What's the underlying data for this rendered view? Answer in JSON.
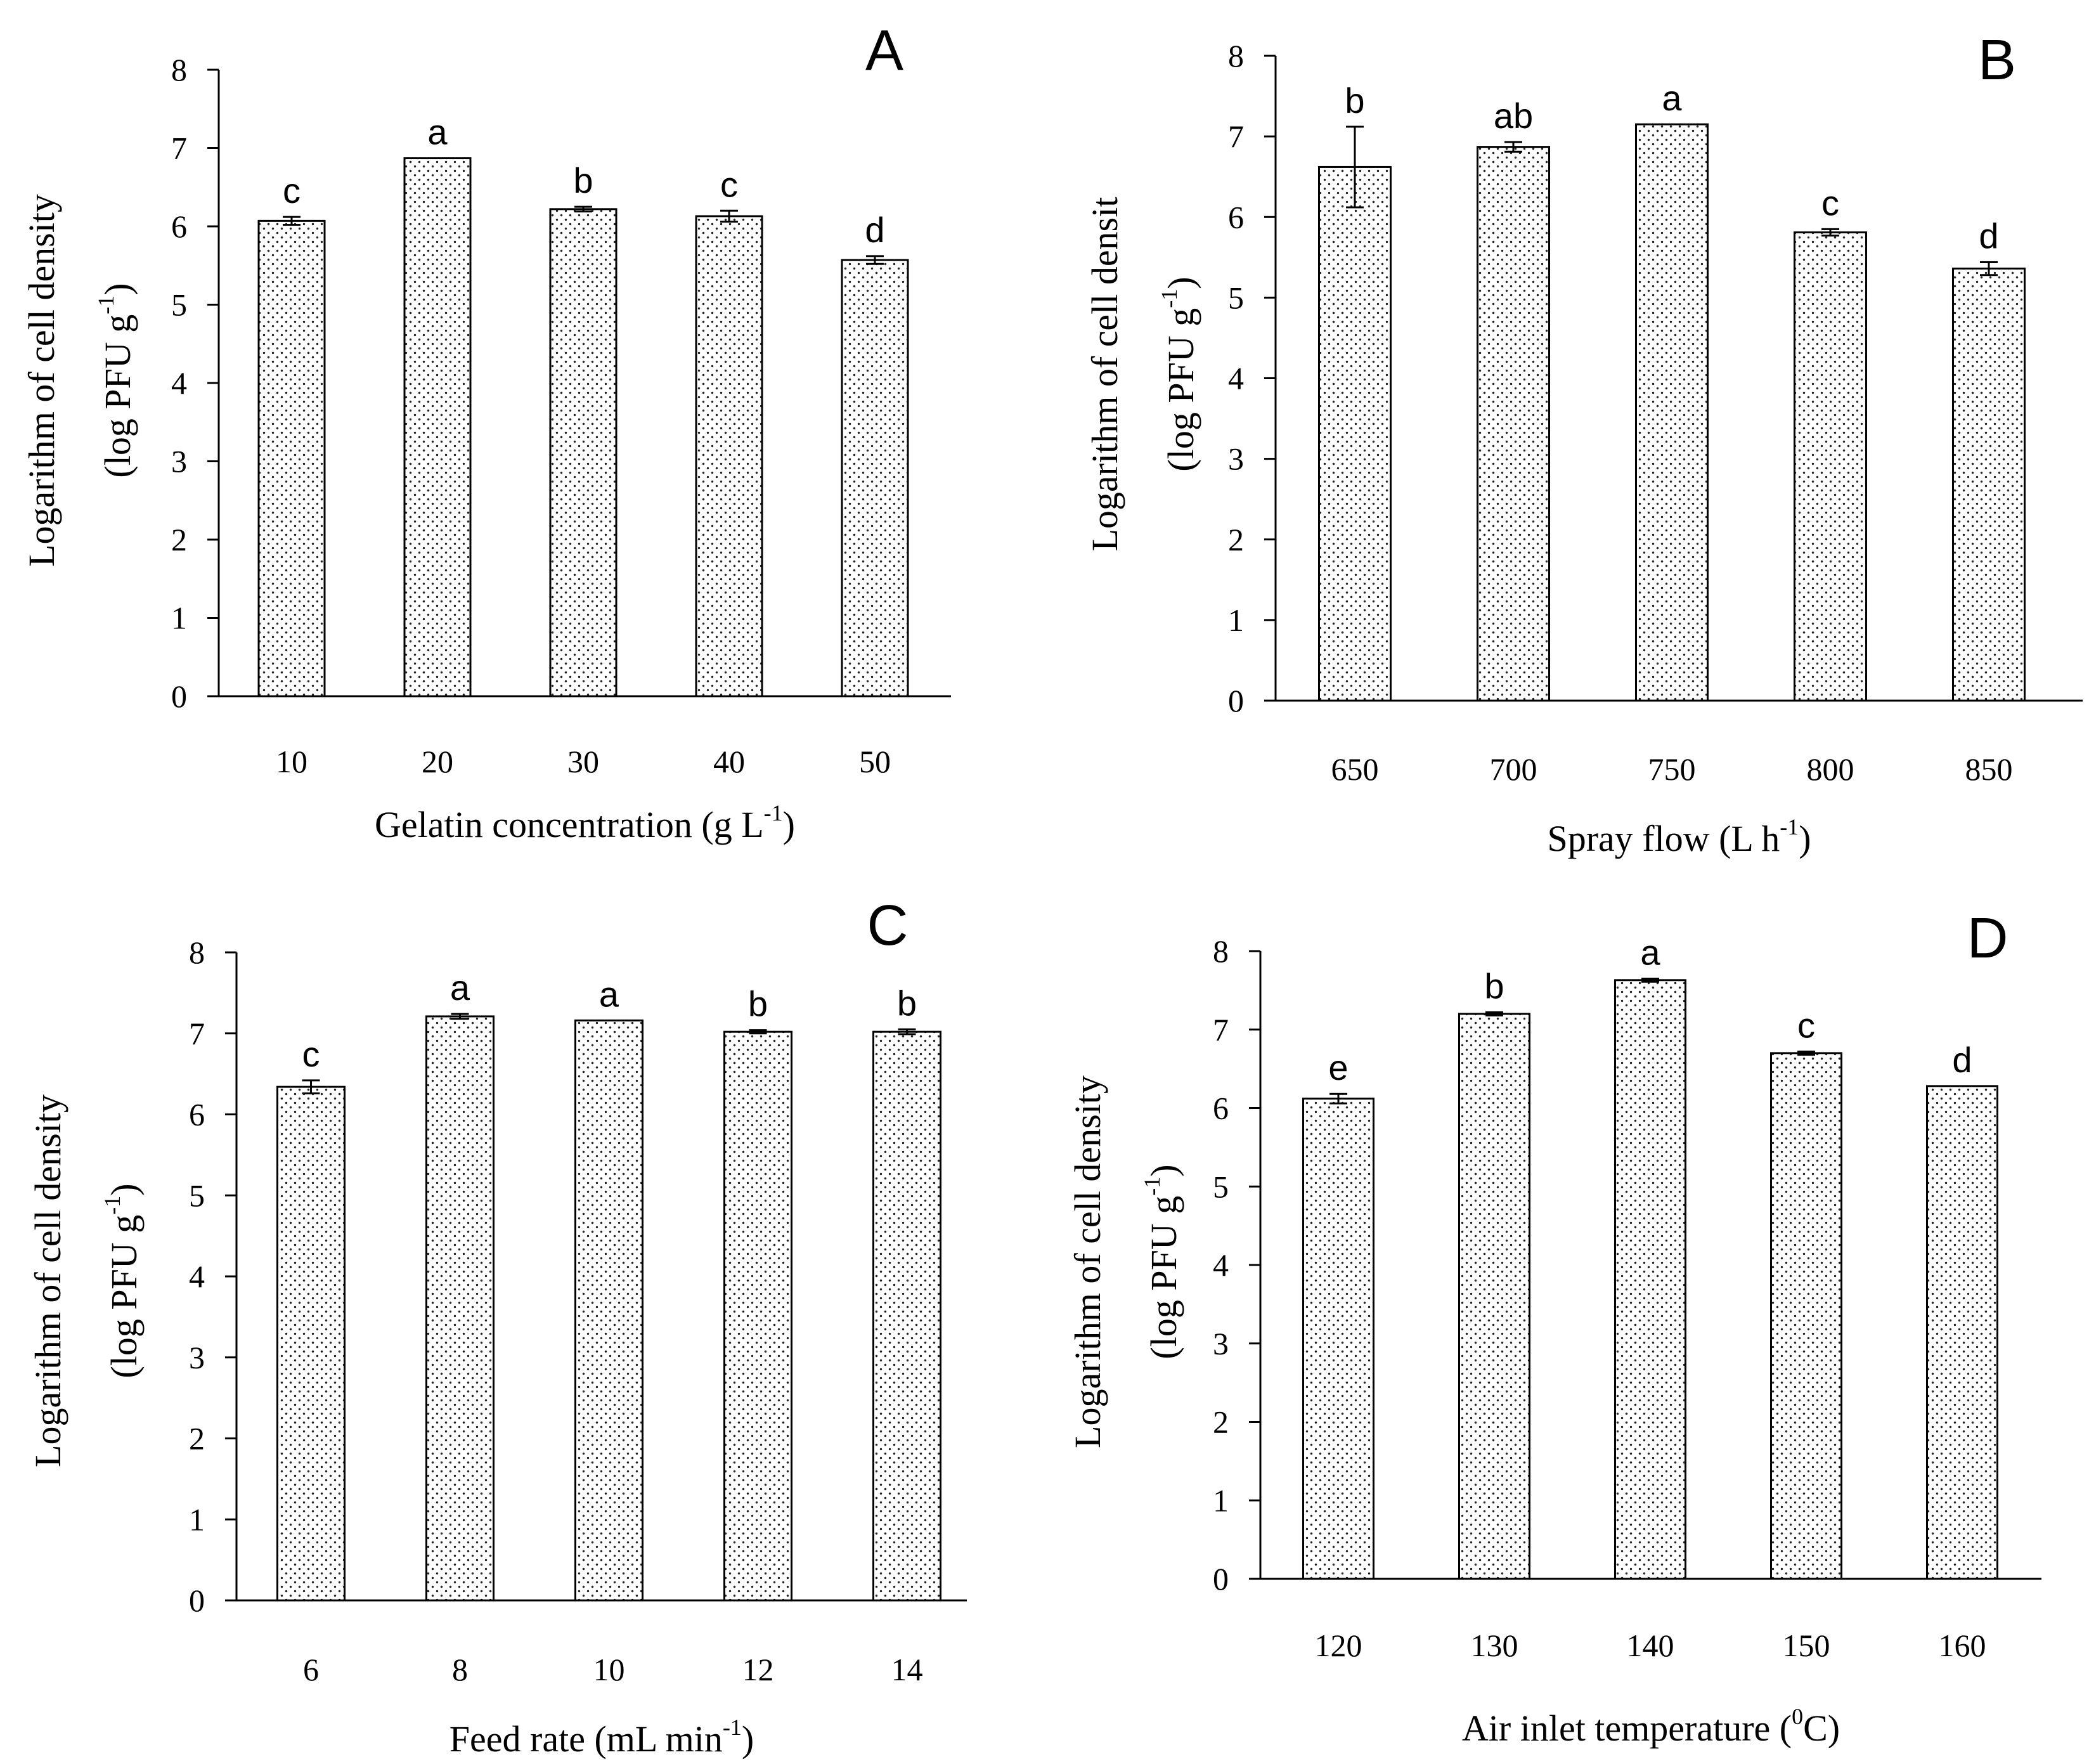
{
  "chart_data": [
    {
      "type": "bar",
      "panel": "A",
      "categories": [
        "10",
        "20",
        "30",
        "40",
        "50"
      ],
      "values": [
        6.07,
        6.87,
        6.22,
        6.13,
        5.57
      ],
      "errors": [
        0.05,
        0.0,
        0.03,
        0.07,
        0.05
      ],
      "significance": [
        "c",
        "a",
        "b",
        "c",
        "d"
      ],
      "xlabel": "Gelatin concentration (g L",
      "xlabel_sup": "-1",
      "xlabel_end": ")",
      "ylabel_line1": "Logarithm of cell density",
      "ylabel_line2": "(log PFU g",
      "ylabel_sup": "-1",
      "ylabel_end": ")",
      "yticks": [
        "0",
        "1",
        "2",
        "3",
        "4",
        "5",
        "6",
        "7",
        "8"
      ],
      "ylim": [
        0,
        8
      ]
    },
    {
      "type": "bar",
      "panel": "B",
      "categories": [
        "650",
        "700",
        "750",
        "800",
        "850"
      ],
      "values": [
        6.62,
        6.87,
        7.15,
        5.81,
        5.36
      ],
      "errors": [
        0.5,
        0.06,
        0.0,
        0.04,
        0.08
      ],
      "significance": [
        "b",
        "ab",
        "a",
        "c",
        "d"
      ],
      "xlabel": "Spray flow (L h",
      "xlabel_sup": "-1",
      "xlabel_end": ")",
      "ylabel_line1": "Logarithm of cell densit",
      "ylabel_line2": "(log PFU g",
      "ylabel_sup": "-1",
      "ylabel_end": ")",
      "yticks": [
        "0",
        "1",
        "2",
        "3",
        "4",
        "5",
        "6",
        "7",
        "8"
      ],
      "ylim": [
        0,
        8
      ]
    },
    {
      "type": "bar",
      "panel": "C",
      "categories": [
        "6",
        "8",
        "10",
        "12",
        "14"
      ],
      "values": [
        6.34,
        7.21,
        7.16,
        7.02,
        7.02
      ],
      "errors": [
        0.08,
        0.03,
        0.0,
        0.02,
        0.03
      ],
      "significance": [
        "c",
        "a",
        "a",
        "b",
        "b"
      ],
      "xlabel": "Feed rate (mL min",
      "xlabel_sup": "-1",
      "xlabel_end": ")",
      "ylabel_line1": "Logarithm of cell density",
      "ylabel_line2": "(log PFU g",
      "ylabel_sup": "-1",
      "ylabel_end": ")",
      "yticks": [
        "0",
        "1",
        "2",
        "3",
        "4",
        "5",
        "6",
        "7",
        "8"
      ],
      "ylim": [
        0,
        8
      ]
    },
    {
      "type": "bar",
      "panel": "D",
      "categories": [
        "120",
        "130",
        "140",
        "150",
        "160"
      ],
      "values": [
        6.12,
        7.2,
        7.63,
        6.7,
        6.28
      ],
      "errors": [
        0.06,
        0.02,
        0.02,
        0.02,
        0.0
      ],
      "significance": [
        "e",
        "b",
        "a",
        "c",
        "d"
      ],
      "xlabel": "Air inlet temperature (",
      "xlabel_sup": "0",
      "xlabel_end": "C)",
      "ylabel_line1": "Logarithm of cell density",
      "ylabel_line2": "(log PFU g",
      "ylabel_sup": "-1",
      "ylabel_end": ")",
      "yticks": [
        "0",
        "1",
        "2",
        "3",
        "4",
        "5",
        "6",
        "7",
        "8"
      ],
      "ylim": [
        0,
        8
      ]
    }
  ]
}
